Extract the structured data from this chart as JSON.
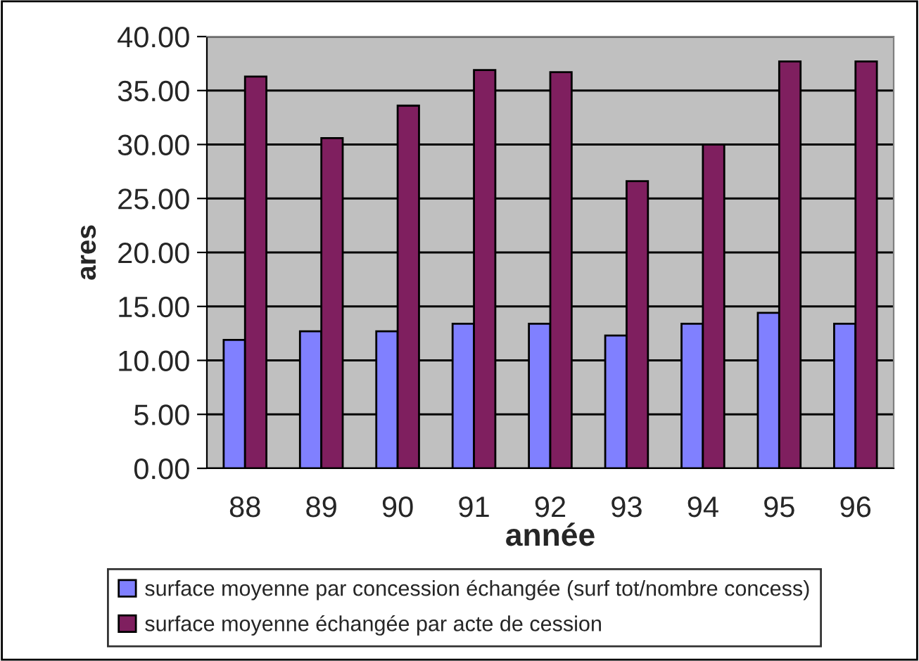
{
  "chart_data": {
    "type": "bar",
    "xlabel": "année",
    "ylabel": "ares",
    "categories": [
      "88",
      "89",
      "90",
      "91",
      "92",
      "93",
      "94",
      "95",
      "96"
    ],
    "series": [
      {
        "name": "surface moyenne par concession échangée (surf tot/nombre concess)",
        "color": "#8080ff",
        "values": [
          11.9,
          12.7,
          12.7,
          13.4,
          13.4,
          12.3,
          13.4,
          14.4,
          13.4
        ]
      },
      {
        "name": "surface moyenne échangée par acte de cession",
        "color": "#7f1f5f",
        "values": [
          36.3,
          30.6,
          33.6,
          36.9,
          36.7,
          26.6,
          30.0,
          37.7,
          37.7
        ]
      }
    ],
    "ylim": [
      0,
      40
    ],
    "yticks": [
      {
        "value": 0,
        "label": "0.00"
      },
      {
        "value": 5,
        "label": "5.00"
      },
      {
        "value": 10,
        "label": "10.00"
      },
      {
        "value": 15,
        "label": "15.00"
      },
      {
        "value": 20,
        "label": "20.00"
      },
      {
        "value": 25,
        "label": "25.00"
      },
      {
        "value": 30,
        "label": "30.00"
      },
      {
        "value": 35,
        "label": "35.00"
      },
      {
        "value": 40,
        "label": "40.00"
      }
    ],
    "grid": "y",
    "legend": "bottom"
  }
}
